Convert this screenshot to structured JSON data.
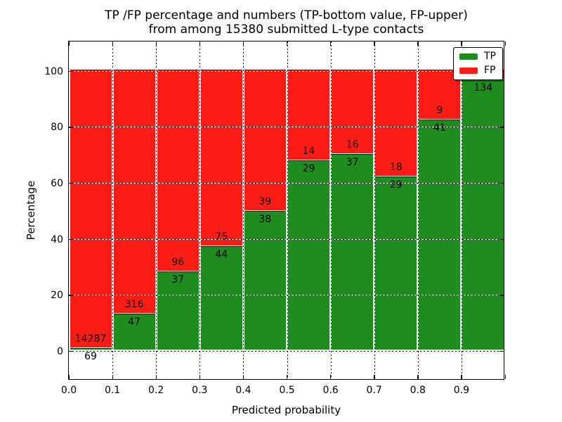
{
  "title": {
    "line1": "TP /FP percentage and numbers (TP-bottom value, FP-upper)",
    "line2": "from among 15380 submitted L-type contacts"
  },
  "axes": {
    "xlabel": "Predicted probability",
    "ylabel": "Percentage",
    "ytick_labels": [
      "0",
      "20",
      "40",
      "60",
      "80",
      "100"
    ],
    "xtick_labels": [
      "0.0",
      "0.1",
      "0.2",
      "0.3",
      "0.4",
      "0.5",
      "0.6",
      "0.7",
      "0.8",
      "0.9"
    ]
  },
  "legend": {
    "items": [
      {
        "label": "TP",
        "color": "#1e8c1e"
      },
      {
        "label": "FP",
        "color": "#fb1d15"
      }
    ]
  },
  "colors": {
    "tp_green": "#1e8c1e",
    "fp_red": "#fb1d15",
    "frame": "#000000",
    "background": "#ffffff"
  },
  "chart_data": {
    "type": "bar",
    "stacked": true,
    "normalized_to": 100,
    "title": "TP /FP percentage and numbers (TP-bottom value, FP-upper) from among 15380 submitted L-type contacts",
    "xlabel": "Predicted probability",
    "ylabel": "Percentage",
    "grid": "dotted",
    "legend_position": "upper right",
    "bin_edges": [
      0.0,
      0.1,
      0.2,
      0.3,
      0.4,
      0.5,
      0.6,
      0.7,
      0.8,
      0.9,
      1.0
    ],
    "categories": [
      "0.0-0.1",
      "0.1-0.2",
      "0.2-0.3",
      "0.3-0.4",
      "0.4-0.5",
      "0.5-0.6",
      "0.6-0.7",
      "0.7-0.8",
      "0.8-0.9",
      "0.9-1.0"
    ],
    "yticks": [
      0,
      20,
      40,
      60,
      80,
      100
    ],
    "ylim_display": [
      -10.5,
      110.5
    ],
    "series": [
      {
        "name": "TP",
        "color": "#1e8c1e",
        "counts": [
          69,
          47,
          37,
          44,
          38,
          29,
          37,
          29,
          41,
          134
        ]
      },
      {
        "name": "FP",
        "color": "#fb1d15",
        "counts": [
          14287,
          316,
          96,
          75,
          39,
          14,
          16,
          18,
          9,
          null
        ]
      }
    ],
    "tp_percent": [
      0.5,
      12.9,
      27.8,
      37.0,
      49.4,
      67.4,
      69.8,
      61.7,
      82.0,
      96.4
    ],
    "tp_labels": [
      "69",
      "47",
      "37",
      "44",
      "38",
      "29",
      "37",
      "29",
      "41",
      "134"
    ],
    "fp_labels": [
      "14287",
      "316",
      "96",
      "75",
      "39",
      "14",
      "16",
      "18",
      "9",
      ""
    ]
  }
}
